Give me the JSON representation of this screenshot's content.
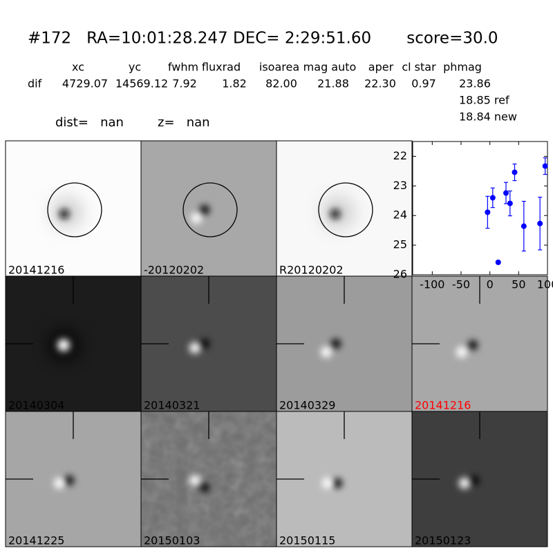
{
  "header": {
    "title": "#172   RA=10:01:28.247 DEC= 2:29:51.60       score=30.0",
    "columns": [
      "xc",
      "yc",
      "fwhm",
      "fluxrad",
      "isoarea",
      "mag auto",
      "aper",
      "cl star",
      "phmag"
    ],
    "row_label": "dif",
    "row": [
      "4729.07",
      "14569.12",
      "7.92",
      "1.82",
      "82.00",
      "21.88",
      "22.30",
      "0.97",
      "23.86"
    ],
    "ref": "18.85 ref",
    "new": "18.84 new",
    "dist": "dist=   nan",
    "z": "z=   nan"
  },
  "panels": [
    {
      "label": "20141216",
      "color": "#000000"
    },
    {
      "label": "-20120202",
      "color": "#000000"
    },
    {
      "label": "R20120202",
      "color": "#000000"
    },
    {
      "label": "20140304",
      "color": "#000000"
    },
    {
      "label": "20140321",
      "color": "#000000"
    },
    {
      "label": "20140329",
      "color": "#000000"
    },
    {
      "label": "20141216",
      "color": "#ff0000"
    },
    {
      "label": "20141225",
      "color": "#000000"
    },
    {
      "label": "20150103",
      "color": "#000000"
    },
    {
      "label": "20150115",
      "color": "#000000"
    },
    {
      "label": "20150123",
      "color": "#000000"
    }
  ],
  "chart_data": {
    "type": "scatter",
    "color": "#0000ff",
    "x": [
      -4,
      5,
      14.5,
      28,
      35,
      43,
      59,
      87,
      96
    ],
    "values": [
      23.89,
      23.4,
      25.58,
      23.24,
      23.59,
      22.54,
      24.36,
      24.27,
      22.33
    ],
    "errors": [
      0.54,
      0.33,
      0.05,
      0.36,
      0.42,
      0.28,
      0.84,
      0.89,
      0.28
    ],
    "xlim": [
      -134,
      100
    ],
    "ylim": [
      26,
      21.5
    ],
    "xticks": [
      -100,
      -50,
      0,
      50,
      100
    ],
    "yticks": [
      22,
      23,
      24,
      25,
      26
    ]
  }
}
